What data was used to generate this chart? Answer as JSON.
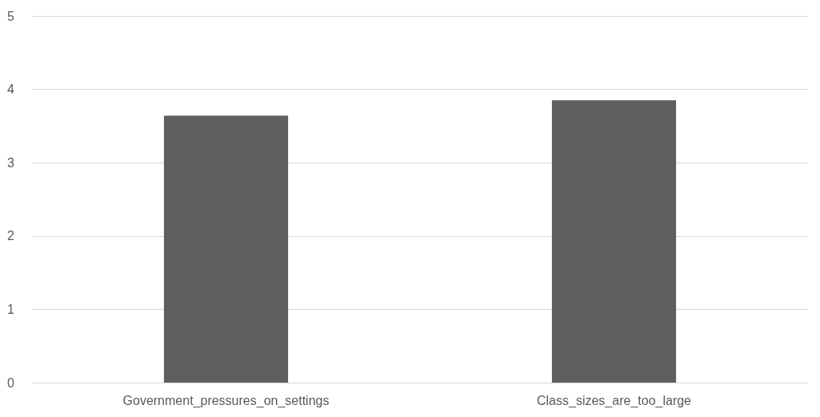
{
  "chart_data": {
    "type": "bar",
    "categories": [
      "Government_pressures_on_settings",
      "Class_sizes_are_too_large"
    ],
    "values": [
      3.64,
      3.85
    ],
    "color": "#5f5f5f",
    "ylim": [
      0,
      5
    ],
    "yticks": [
      0,
      1,
      2,
      3,
      4,
      5
    ],
    "grid": "y"
  }
}
